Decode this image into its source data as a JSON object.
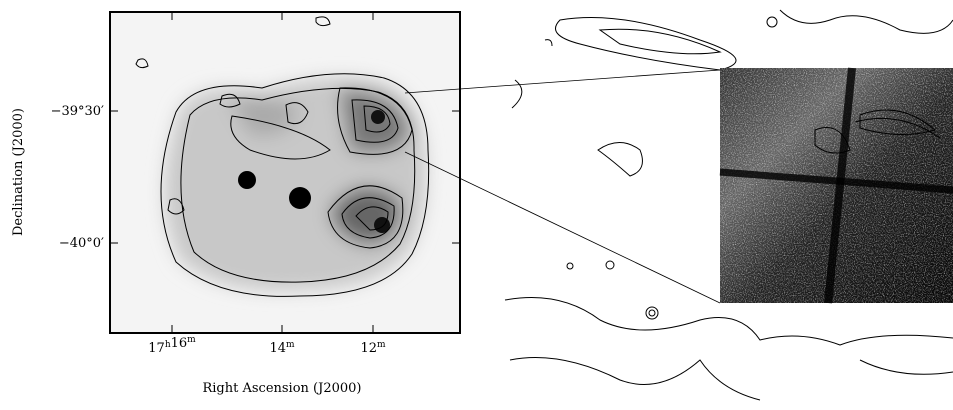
{
  "figure": {
    "y_label": "Declination (J2000)",
    "y_ticks": [
      "−39°30′",
      "−40°0′"
    ],
    "x_label": "Right Ascension (J2000)",
    "x_ticks": [
      [
        [
          "17",
          "h"
        ],
        [
          "16",
          "m"
        ]
      ],
      [
        [
          "14",
          "m"
        ]
      ],
      [
        [
          "12",
          "m"
        ]
      ]
    ]
  }
}
